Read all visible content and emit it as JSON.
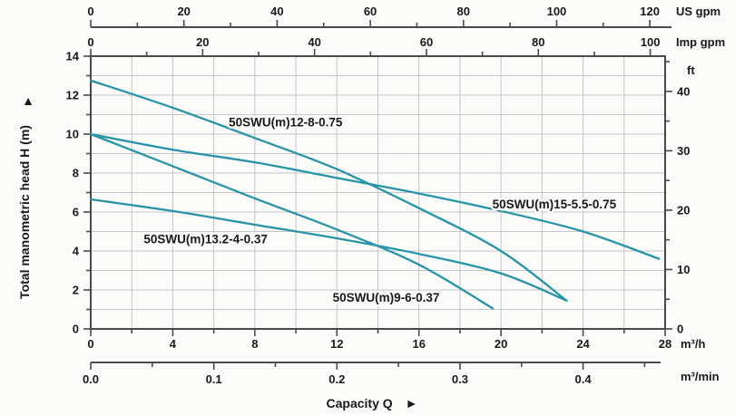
{
  "chart_data": {
    "type": "line",
    "title": "",
    "xlabel": "Capacity Q",
    "xlabel_arrow": "►",
    "ylabel": "Total manometric head H (m)",
    "ylabel_arrow": "▲",
    "grid": true,
    "legend_position": "inline-labels",
    "x_axis": {
      "unit": "m³/h",
      "min": 0,
      "max": 28,
      "tick_labels": [
        "0",
        "4",
        "8",
        "12",
        "16",
        "20",
        "24",
        "28"
      ],
      "minor_step": 2
    },
    "y_axis": {
      "unit": "m",
      "min": 0,
      "max": 14,
      "tick_labels": [
        "0",
        "2",
        "4",
        "6",
        "8",
        "10",
        "12",
        "14"
      ],
      "minor_step": 1
    },
    "y_axis_right": {
      "unit": "ft",
      "per_m": 3.2808,
      "tick_labels": [
        "0",
        "10",
        "20",
        "30",
        "40"
      ],
      "minor_step": 5,
      "max_tick": 45
    },
    "x_axis_us_gpm": {
      "unit": "US gpm",
      "per_m3h": 4.4029,
      "tick_labels": [
        "0",
        "20",
        "40",
        "60",
        "80",
        "100",
        "120"
      ],
      "minor_step": 10,
      "max_tick": 120
    },
    "x_axis_imp_gpm": {
      "unit": "Imp gpm",
      "per_m3h": 3.6664,
      "tick_labels": [
        "0",
        "20",
        "40",
        "60",
        "80",
        "100"
      ],
      "minor_step": 10,
      "max_tick": 100
    },
    "x_axis_m3_min": {
      "unit": "m³/min",
      "per_m3h": 0.0166667,
      "tick_labels": [
        "0.0",
        "0.1",
        "0.2",
        "0.3",
        "0.4"
      ],
      "minor_step": 0.05,
      "max_tick": 0.45
    },
    "series": [
      {
        "name": "50SWU(m)12-8-0.75",
        "points": [
          [
            0,
            12.75
          ],
          [
            4,
            11.35
          ],
          [
            8,
            9.8
          ],
          [
            12,
            8.2
          ],
          [
            16,
            6.2
          ],
          [
            20,
            4.0
          ],
          [
            23.2,
            1.45
          ]
        ],
        "label_at": {
          "q": 9.5,
          "h": 10.6
        }
      },
      {
        "name": "50SWU(m)15-5.5-0.75",
        "points": [
          [
            0,
            10.0
          ],
          [
            4,
            9.2
          ],
          [
            8,
            8.55
          ],
          [
            12,
            7.75
          ],
          [
            16,
            6.95
          ],
          [
            20,
            6.05
          ],
          [
            24,
            5.0
          ],
          [
            27.7,
            3.6
          ]
        ],
        "label_at": {
          "q": 22.6,
          "h": 6.4
        }
      },
      {
        "name": "50SWU(m)13.2-4-0.37",
        "points": [
          [
            0,
            6.65
          ],
          [
            4,
            6.05
          ],
          [
            8,
            5.35
          ],
          [
            12,
            4.65
          ],
          [
            16,
            3.85
          ],
          [
            20,
            2.85
          ],
          [
            23.2,
            1.45
          ]
        ],
        "label_at": {
          "q": 5.6,
          "h": 4.6
        }
      },
      {
        "name": "50SWU(m)9-6-0.37",
        "points": [
          [
            0,
            10.0
          ],
          [
            4,
            8.35
          ],
          [
            8,
            6.7
          ],
          [
            12,
            5.1
          ],
          [
            16,
            3.3
          ],
          [
            19.6,
            1.05
          ]
        ],
        "label_at": {
          "q": 14.4,
          "h": 1.6
        }
      }
    ],
    "colors": {
      "curve": "#2794a8",
      "grid": "#c5c5c5",
      "frame": "#4a4a4a",
      "text": "#1a1a1a",
      "background": "#fbfbfa"
    }
  }
}
